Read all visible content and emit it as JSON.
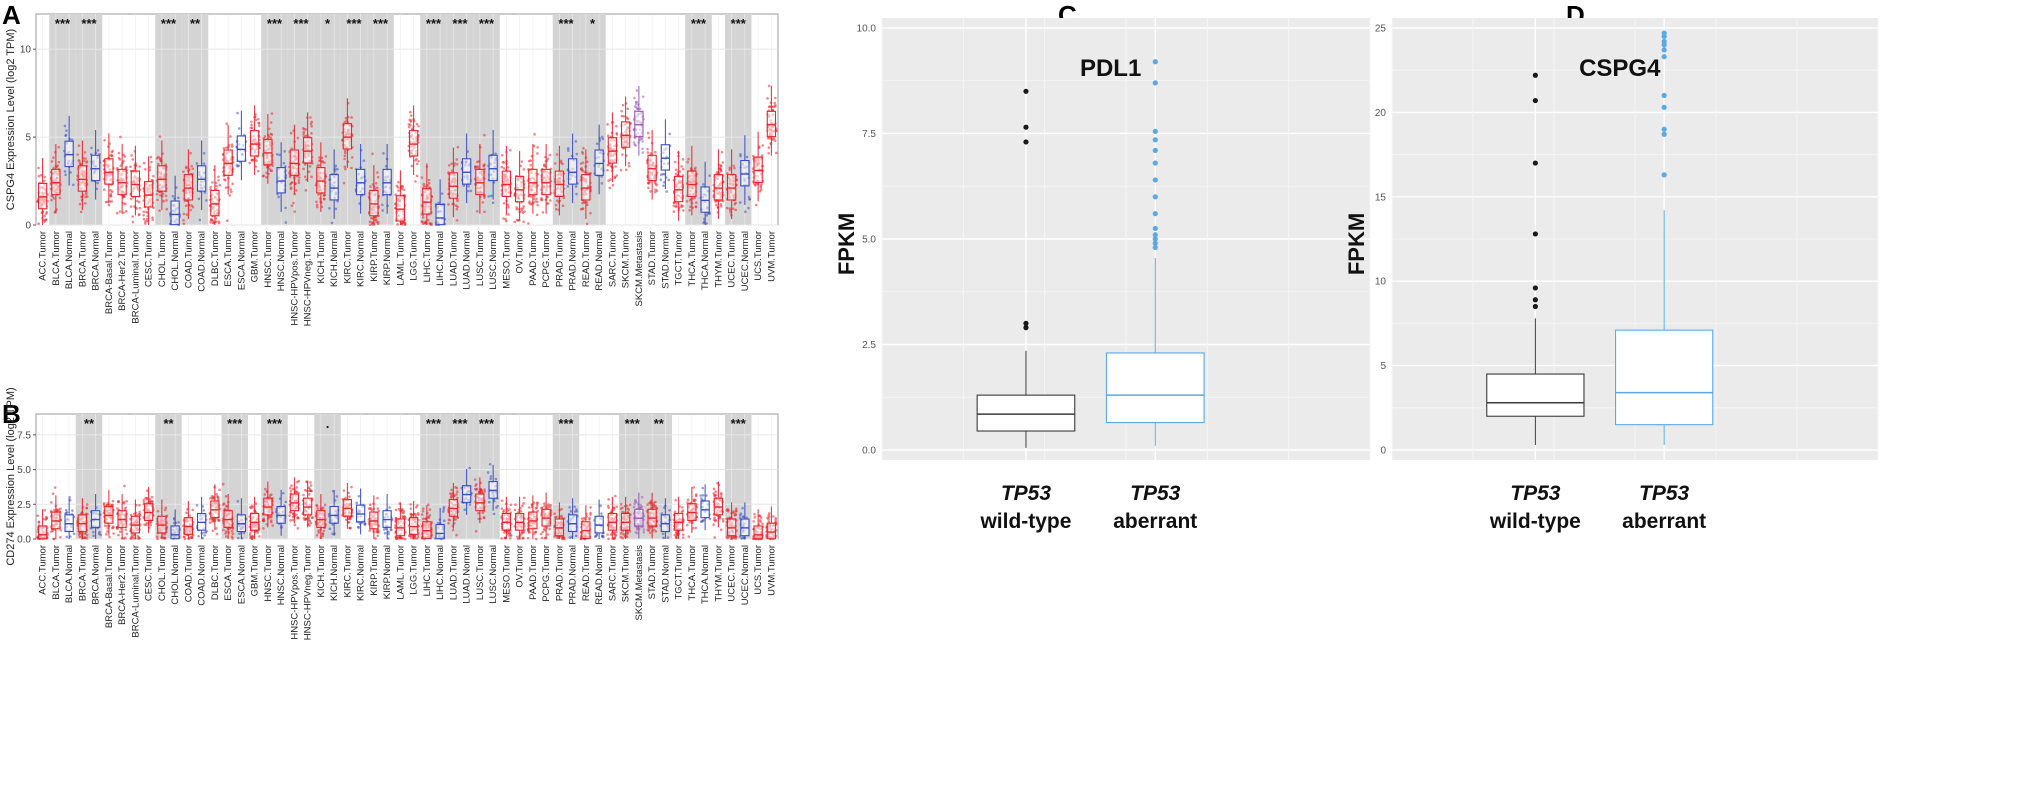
{
  "panels": {
    "a": "A",
    "b": "B",
    "c": "C",
    "d": "D"
  },
  "chart_data": [
    {
      "id": "A",
      "type": "box",
      "ylabel": "CSPG4 Expression Level (log2 TPM)",
      "ylim": [
        0,
        12
      ],
      "yticks": [
        0,
        5,
        10
      ],
      "categories": [
        "ACC.Tumor",
        "BLCA.Tumor",
        "BLCA.Normal",
        "BRCA.Tumor",
        "BRCA.Normal",
        "BRCA-Basal.Tumor",
        "BRCA-Her2.Tumor",
        "BRCA-Luminal.Tumor",
        "CESC.Tumor",
        "CHOL.Tumor",
        "CHOL.Normal",
        "COAD.Tumor",
        "COAD.Normal",
        "DLBC.Tumor",
        "ESCA.Tumor",
        "ESCA.Normal",
        "GBM.Tumor",
        "HNSC.Tumor",
        "HNSC.Normal",
        "HNSC-HPVpos.Tumor",
        "HNSC-HPVneg.Tumor",
        "KICH.Tumor",
        "KICH.Normal",
        "KIRC.Tumor",
        "KIRC.Normal",
        "KIRP.Tumor",
        "KIRP.Normal",
        "LAML.Tumor",
        "LGG.Tumor",
        "LIHC.Tumor",
        "LIHC.Normal",
        "LUAD.Tumor",
        "LUAD.Normal",
        "LUSC.Tumor",
        "LUSC.Normal",
        "MESO.Tumor",
        "OV.Tumor",
        "PAAD.Tumor",
        "PCPG.Tumor",
        "PRAD.Tumor",
        "PRAD.Normal",
        "READ.Tumor",
        "READ.Normal",
        "SARC.Tumor",
        "SKCM.Tumor",
        "SKCM.Metastasis",
        "STAD.Tumor",
        "STAD.Normal",
        "TGCT.Tumor",
        "THCA.Tumor",
        "THCA.Normal",
        "THYM.Tumor",
        "UCEC.Tumor",
        "UCEC.Normal",
        "UCS.Tumor",
        "UVM.Tumor"
      ],
      "medians": [
        1.6,
        2.4,
        4.0,
        2.6,
        3.2,
        3.0,
        2.4,
        2.3,
        1.7,
        2.6,
        0.6,
        2.1,
        2.6,
        1.2,
        3.5,
        4.3,
        4.6,
        4.1,
        2.5,
        3.5,
        4.2,
        2.5,
        2.1,
        5.0,
        2.4,
        1.2,
        2.4,
        0.9,
        4.6,
        1.3,
        0.4,
        2.2,
        3.0,
        2.4,
        3.2,
        2.3,
        2.0,
        2.4,
        2.4,
        2.3,
        3.0,
        2.1,
        3.5,
        4.2,
        5.1,
        5.7,
        3.2,
        3.8,
        2.0,
        2.3,
        1.4,
        2.1,
        2.1,
        2.9,
        3.1,
        5.7
      ],
      "significance": [
        {
          "pair": [
            1,
            2
          ],
          "label": "***"
        },
        {
          "pair": [
            3,
            4
          ],
          "label": "***"
        },
        {
          "pair": [
            9,
            10
          ],
          "label": "***"
        },
        {
          "pair": [
            11,
            12
          ],
          "label": "**"
        },
        {
          "pair": [
            17,
            18
          ],
          "label": "***"
        },
        {
          "pair": [
            19,
            20
          ],
          "label": "***"
        },
        {
          "pair": [
            21,
            22
          ],
          "label": "*"
        },
        {
          "pair": [
            23,
            24
          ],
          "label": "***"
        },
        {
          "pair": [
            25,
            26
          ],
          "label": "***"
        },
        {
          "pair": [
            29,
            30
          ],
          "label": "***"
        },
        {
          "pair": [
            31,
            32
          ],
          "label": "***"
        },
        {
          "pair": [
            33,
            34
          ],
          "label": "***"
        },
        {
          "pair": [
            39,
            40
          ],
          "label": "***"
        },
        {
          "pair": [
            41,
            42
          ],
          "label": "*"
        },
        {
          "pair": [
            49,
            50
          ],
          "label": "***"
        },
        {
          "pair": [
            52,
            53
          ],
          "label": "***"
        }
      ]
    },
    {
      "id": "B",
      "type": "box",
      "ylabel": "CD274 Expression Level (log2 TPM)",
      "ylim": [
        0,
        9
      ],
      "yticks": [
        0.0,
        2.5,
        5.0,
        7.5
      ],
      "categories": [
        "ACC.Tumor",
        "BLCA.Tumor",
        "BLCA.Normal",
        "BRCA.Tumor",
        "BRCA.Normal",
        "BRCA-Basal.Tumor",
        "BRCA-Her2.Tumor",
        "BRCA-Luminal.Tumor",
        "CESC.Tumor",
        "CHOL.Tumor",
        "CHOL.Normal",
        "COAD.Tumor",
        "COAD.Normal",
        "DLBC.Tumor",
        "ESCA.Tumor",
        "ESCA.Normal",
        "GBM.Tumor",
        "HNSC.Tumor",
        "HNSC.Normal",
        "HNSC-HPVpos.Tumor",
        "HNSC-HPVneg.Tumor",
        "KICH.Tumor",
        "KICH.Normal",
        "KIRC.Tumor",
        "KIRC.Normal",
        "KIRP.Tumor",
        "KIRP.Normal",
        "LAML.Tumor",
        "LGG.Tumor",
        "LIHC.Tumor",
        "LIHC.Normal",
        "LUAD.Tumor",
        "LUAD.Normal",
        "LUSC.Tumor",
        "LUSC.Normal",
        "MESO.Tumor",
        "OV.Tumor",
        "PAAD.Tumor",
        "PCPG.Tumor",
        "PRAD.Tumor",
        "PRAD.Normal",
        "READ.Tumor",
        "READ.Normal",
        "SARC.Tumor",
        "SKCM.Tumor",
        "SKCM.Metastasis",
        "STAD.Tumor",
        "STAD.Normal",
        "TGCT.Tumor",
        "THCA.Tumor",
        "THCA.Normal",
        "THYM.Tumor",
        "UCEC.Tumor",
        "UCEC.Normal",
        "UCS.Tumor",
        "UVM.Tumor"
      ],
      "medians": [
        0.3,
        1.3,
        1.1,
        1.1,
        1.4,
        1.7,
        1.4,
        1.0,
        1.9,
        1.0,
        0.3,
        0.9,
        1.2,
        2.1,
        1.4,
        1.1,
        1.2,
        2.3,
        1.7,
        2.6,
        2.3,
        1.4,
        1.7,
        2.2,
        1.8,
        1.3,
        1.4,
        0.8,
        0.9,
        0.6,
        0.4,
        2.2,
        3.2,
        2.6,
        3.5,
        1.2,
        1.2,
        1.3,
        1.5,
        0.8,
        1.1,
        0.6,
        1.0,
        1.2,
        1.2,
        1.5,
        1.5,
        1.1,
        1.2,
        1.9,
        2.1,
        2.3,
        0.8,
        0.8,
        0.3,
        0.5
      ],
      "significance": [
        {
          "pair": [
            3,
            4
          ],
          "label": "**"
        },
        {
          "pair": [
            9,
            10
          ],
          "label": "**"
        },
        {
          "pair": [
            14,
            15
          ],
          "label": "***"
        },
        {
          "pair": [
            17,
            18
          ],
          "label": "***"
        },
        {
          "pair": [
            21,
            22
          ],
          "label": "."
        },
        {
          "pair": [
            29,
            30
          ],
          "label": "***"
        },
        {
          "pair": [
            31,
            32
          ],
          "label": "***"
        },
        {
          "pair": [
            33,
            34
          ],
          "label": "***"
        },
        {
          "pair": [
            39,
            40
          ],
          "label": "***"
        },
        {
          "pair": [
            44,
            45
          ],
          "label": "***"
        },
        {
          "pair": [
            46,
            47
          ],
          "label": "**"
        },
        {
          "pair": [
            52,
            53
          ],
          "label": "***"
        }
      ]
    },
    {
      "id": "C",
      "type": "box",
      "title": "PDL1",
      "ylabel": "FPKM",
      "ylim": [
        0,
        10
      ],
      "yticks": [
        0.0,
        2.5,
        5.0,
        7.5,
        10.0
      ],
      "groups": [
        {
          "name": "TP53",
          "sub": "wild-type",
          "color": "#3a3a3a",
          "q1": 0.45,
          "median": 0.85,
          "q3": 1.3,
          "whisker_low": 0.05,
          "whisker_high": 2.35,
          "outliers": [
            2.9,
            3.0,
            7.3,
            7.65,
            8.5
          ]
        },
        {
          "name": "TP53",
          "sub": "aberrant",
          "color": "#5aa9e6",
          "q1": 0.65,
          "median": 1.3,
          "q3": 2.3,
          "whisker_low": 0.1,
          "whisker_high": 4.55,
          "outliers": [
            4.8,
            4.9,
            5.0,
            5.1,
            5.25,
            5.6,
            6.0,
            6.4,
            6.8,
            7.1,
            7.35,
            7.55,
            8.7,
            9.2
          ]
        }
      ]
    },
    {
      "id": "D",
      "type": "box",
      "title": "CSPG4",
      "ylabel": "FPKM",
      "ylim": [
        0,
        25
      ],
      "yticks": [
        0,
        5,
        10,
        15,
        20,
        25
      ],
      "groups": [
        {
          "name": "TP53",
          "sub": "wild-type",
          "color": "#3a3a3a",
          "q1": 2.0,
          "median": 2.8,
          "q3": 4.5,
          "whisker_low": 0.3,
          "whisker_high": 7.8,
          "outliers": [
            8.5,
            8.9,
            9.6,
            12.8,
            17.0,
            20.7,
            22.2
          ]
        },
        {
          "name": "TP53",
          "sub": "aberrant",
          "color": "#5aa9e6",
          "q1": 1.5,
          "median": 3.4,
          "q3": 7.1,
          "whisker_low": 0.3,
          "whisker_high": 14.2,
          "outliers": [
            16.3,
            18.7,
            19.0,
            20.3,
            21.0,
            23.3,
            23.7,
            24.0,
            24.2,
            24.5,
            24.7
          ]
        }
      ]
    }
  ]
}
